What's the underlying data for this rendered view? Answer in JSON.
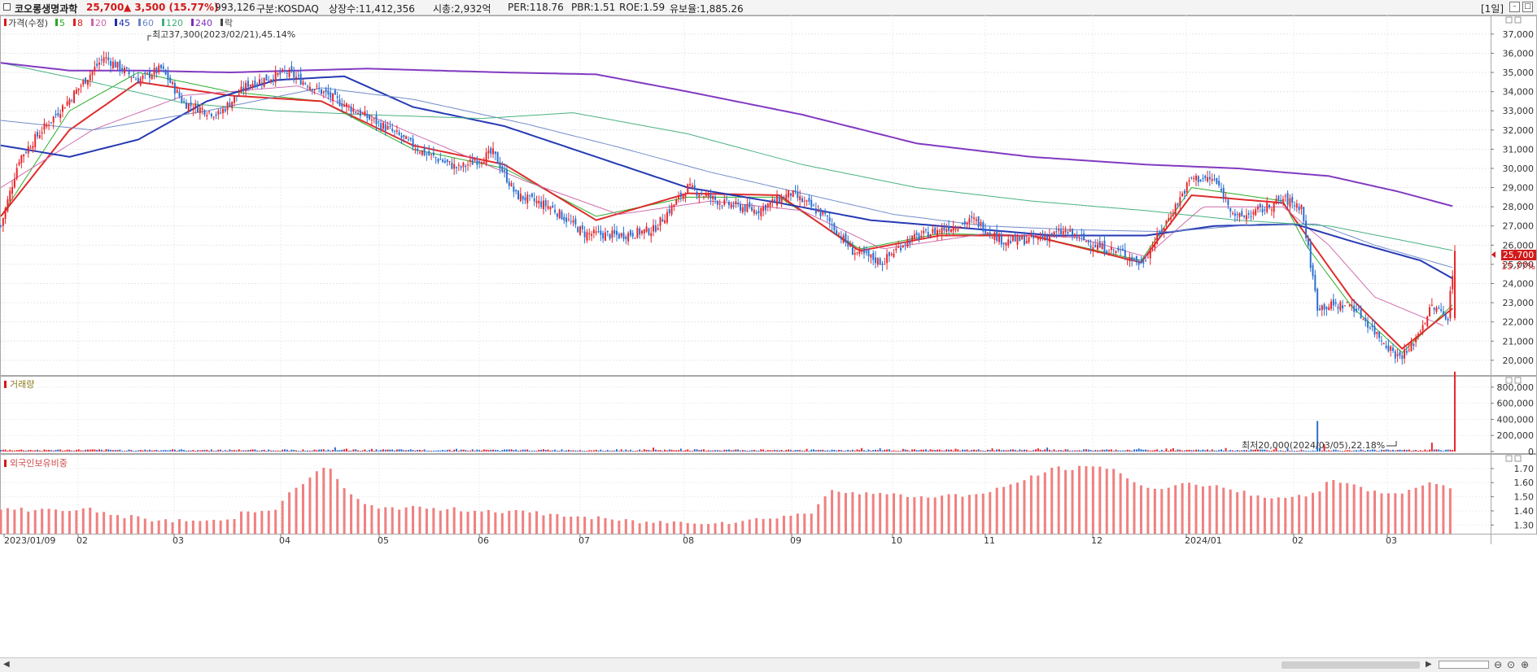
{
  "header": {
    "stock_name": "코오롱생명과학",
    "price": "25,700",
    "change": "▲ 3,500 (15.77%)",
    "volume": "993,126",
    "market": "구분:KOSDAQ",
    "shares": "상장수:11,412,356",
    "market_cap": "시총:2,932억",
    "per": "PER:118.76",
    "pbr": "PBR:1.51",
    "roe": "ROE:1.59",
    "float": "유보율:1,885.26",
    "period": "[1일]"
  },
  "price_panel": {
    "legend_prefix": "가격(수정)",
    "legend_items": [
      {
        "label": "5",
        "color": "#22aa22"
      },
      {
        "label": "8",
        "color": "#dd2222"
      },
      {
        "label": "20",
        "color": "#cc66aa"
      },
      {
        "label": "45",
        "color": "#1a2fb0"
      },
      {
        "label": "60",
        "color": "#6b86c8"
      },
      {
        "label": "120",
        "color": "#3fae7a"
      },
      {
        "label": "240",
        "color": "#7b2fbe"
      },
      {
        "label": "락",
        "color": "#444444"
      }
    ],
    "high_annotation": "최고37,300(2023/02/21),45.14%",
    "low_annotation": "최저20,000(2024/03/05),22.18%",
    "current_price_label": "25,700",
    "current_pct_label": "15.77%"
  },
  "volume_panel": {
    "title": "거래량"
  },
  "foreign_panel": {
    "title": "외국인보유비중"
  },
  "colors": {
    "up": "#e8262a",
    "down": "#2a6fd1",
    "bar_pink": "#f08080"
  },
  "chart_data": [
    {
      "type": "candlestick",
      "title": "가격(수정)",
      "x_labels": [
        "2023/01/09",
        "02",
        "03",
        "04",
        "05",
        "06",
        "07",
        "08",
        "09",
        "10",
        "11",
        "12",
        "2024/01",
        "02",
        "03"
      ],
      "y_ticks": [
        20000,
        21000,
        22000,
        23000,
        24000,
        25000,
        26000,
        27000,
        28000,
        29000,
        30000,
        31000,
        32000,
        33000,
        34000,
        35000,
        36000,
        37000
      ],
      "ylim": [
        19400,
        37800
      ],
      "approx_close_path": [
        [
          0,
          27000
        ],
        [
          8,
          30500
        ],
        [
          18,
          32000
        ],
        [
          30,
          33600
        ],
        [
          45,
          35800
        ],
        [
          60,
          34600
        ],
        [
          70,
          35200
        ],
        [
          80,
          33400
        ],
        [
          95,
          32800
        ],
        [
          108,
          34400
        ],
        [
          125,
          35000
        ],
        [
          140,
          34000
        ],
        [
          155,
          33000
        ],
        [
          170,
          32000
        ],
        [
          185,
          30800
        ],
        [
          200,
          30000
        ],
        [
          215,
          30800
        ],
        [
          225,
          28600
        ],
        [
          240,
          28000
        ],
        [
          255,
          26600
        ],
        [
          270,
          26500
        ],
        [
          285,
          26800
        ],
        [
          300,
          29000
        ],
        [
          315,
          28200
        ],
        [
          330,
          27800
        ],
        [
          345,
          28700
        ],
        [
          360,
          27500
        ],
        [
          372,
          25700
        ],
        [
          385,
          25100
        ],
        [
          395,
          26200
        ],
        [
          410,
          26800
        ],
        [
          425,
          27300
        ],
        [
          438,
          26200
        ],
        [
          450,
          26300
        ],
        [
          465,
          26700
        ],
        [
          480,
          25900
        ],
        [
          490,
          25600
        ],
        [
          498,
          25000
        ],
        [
          510,
          27400
        ],
        [
          520,
          29500
        ],
        [
          530,
          29400
        ],
        [
          540,
          27400
        ],
        [
          550,
          27800
        ],
        [
          560,
          28400
        ],
        [
          568,
          28000
        ],
        [
          575,
          22800
        ],
        [
          590,
          22900
        ],
        [
          600,
          21500
        ],
        [
          610,
          20200
        ],
        [
          615,
          20500
        ],
        [
          625,
          22800
        ],
        [
          632,
          22300
        ],
        [
          635,
          25700
        ]
      ],
      "last": {
        "date": "2024/03",
        "close": 25700,
        "change": 3500,
        "change_pct": 15.77
      },
      "period_high": {
        "date": "2023/02/21",
        "value": 37300,
        "pct": 45.14
      },
      "period_low": {
        "date": "2024/03/05",
        "value": 20000,
        "pct": 22.18
      },
      "moving_averages": [
        {
          "name": "5",
          "points": [
            [
              0,
              27500
            ],
            [
              30,
              33000
            ],
            [
              60,
              35000
            ],
            [
              100,
              34000
            ],
            [
              140,
              33500
            ],
            [
              180,
              31000
            ],
            [
              220,
              30000
            ],
            [
              260,
              27500
            ],
            [
              300,
              28500
            ],
            [
              340,
              28500
            ],
            [
              375,
              25800
            ],
            [
              410,
              26600
            ],
            [
              450,
              26500
            ],
            [
              498,
              25200
            ],
            [
              520,
              29000
            ],
            [
              560,
              28300
            ],
            [
              570,
              26000
            ],
            [
              590,
              22800
            ],
            [
              612,
              20400
            ],
            [
              635,
              23000
            ]
          ]
        },
        {
          "name": "8",
          "points": [
            [
              0,
              27500
            ],
            [
              30,
              32000
            ],
            [
              60,
              34500
            ],
            [
              100,
              33800
            ],
            [
              140,
              33500
            ],
            [
              180,
              31200
            ],
            [
              220,
              30200
            ],
            [
              260,
              27300
            ],
            [
              300,
              28700
            ],
            [
              340,
              28600
            ],
            [
              375,
              25700
            ],
            [
              410,
              26500
            ],
            [
              450,
              26500
            ],
            [
              498,
              25100
            ],
            [
              520,
              28600
            ],
            [
              560,
              28200
            ],
            [
              572,
              26200
            ],
            [
              590,
              23200
            ],
            [
              612,
              20600
            ],
            [
              635,
              22800
            ]
          ]
        },
        {
          "name": "20",
          "points": [
            [
              0,
              29000
            ],
            [
              40,
              32000
            ],
            [
              80,
              33800
            ],
            [
              130,
              34300
            ],
            [
              180,
              31800
            ],
            [
              230,
              29300
            ],
            [
              270,
              27600
            ],
            [
              310,
              28300
            ],
            [
              350,
              27800
            ],
            [
              385,
              25800
            ],
            [
              430,
              26600
            ],
            [
              470,
              26400
            ],
            [
              500,
              25400
            ],
            [
              525,
              28000
            ],
            [
              560,
              28000
            ],
            [
              580,
              26000
            ],
            [
              600,
              23300
            ],
            [
              630,
              21800
            ]
          ]
        },
        {
          "name": "45",
          "points": [
            [
              0,
              31200
            ],
            [
              30,
              30600
            ],
            [
              60,
              31500
            ],
            [
              90,
              33500
            ],
            [
              120,
              34600
            ],
            [
              150,
              34800
            ],
            [
              180,
              33200
            ],
            [
              220,
              32200
            ],
            [
              260,
              30600
            ],
            [
              300,
              29000
            ],
            [
              340,
              28200
            ],
            [
              380,
              27300
            ],
            [
              420,
              26900
            ],
            [
              460,
              26500
            ],
            [
              500,
              26500
            ],
            [
              530,
              27000
            ],
            [
              565,
              27100
            ],
            [
              590,
              26200
            ],
            [
              620,
              25200
            ],
            [
              635,
              24200
            ]
          ]
        },
        {
          "name": "60",
          "points": [
            [
              0,
              32500
            ],
            [
              40,
              32000
            ],
            [
              90,
              33000
            ],
            [
              140,
              34200
            ],
            [
              180,
              33600
            ],
            [
              230,
              32300
            ],
            [
              270,
              31100
            ],
            [
              310,
              29800
            ],
            [
              350,
              28700
            ],
            [
              390,
              27600
            ],
            [
              430,
              27000
            ],
            [
              470,
              26800
            ],
            [
              510,
              26700
            ],
            [
              550,
              27100
            ],
            [
              575,
              27100
            ],
            [
              600,
              26000
            ],
            [
              635,
              24800
            ]
          ]
        },
        {
          "name": "120",
          "points": [
            [
              0,
              35500
            ],
            [
              40,
              34500
            ],
            [
              80,
              33400
            ],
            [
              120,
              33000
            ],
            [
              160,
              32800
            ],
            [
              210,
              32600
            ],
            [
              250,
              32900
            ],
            [
              300,
              31800
            ],
            [
              350,
              30200
            ],
            [
              400,
              29000
            ],
            [
              450,
              28300
            ],
            [
              500,
              27800
            ],
            [
              540,
              27300
            ],
            [
              580,
              27000
            ],
            [
              610,
              26300
            ],
            [
              635,
              25700
            ]
          ]
        },
        {
          "name": "240",
          "points": [
            [
              0,
              35500
            ],
            [
              30,
              35100
            ],
            [
              60,
              35100
            ],
            [
              100,
              35000
            ],
            [
              160,
              35200
            ],
            [
              220,
              35000
            ],
            [
              260,
              34900
            ],
            [
              300,
              34000
            ],
            [
              350,
              32800
            ],
            [
              400,
              31300
            ],
            [
              450,
              30600
            ],
            [
              500,
              30200
            ],
            [
              540,
              30000
            ],
            [
              580,
              29600
            ],
            [
              610,
              28800
            ],
            [
              635,
              28000
            ]
          ]
        }
      ]
    },
    {
      "type": "bar",
      "title": "거래량",
      "y_ticks": [
        0,
        200000,
        400000,
        600000,
        800000
      ],
      "ylim": [
        0,
        900000
      ],
      "notable_bars": [
        {
          "x_index": 575,
          "value": 380000,
          "direction": "down"
        },
        {
          "x_index": 578,
          "value": 90000,
          "direction": "up"
        },
        {
          "x_index": 625,
          "value": 110000,
          "direction": "up"
        },
        {
          "x_index": 635,
          "value": 993126,
          "direction": "up"
        }
      ],
      "baseline_level": 15000
    },
    {
      "type": "bar",
      "title": "외국인보유비중",
      "y_ticks": [
        1.3,
        1.4,
        1.5,
        1.6,
        1.7
      ],
      "ylim": [
        1.25,
        1.78
      ],
      "approx_path": [
        [
          0,
          1.41
        ],
        [
          40,
          1.41
        ],
        [
          45,
          1.38
        ],
        [
          70,
          1.33
        ],
        [
          100,
          1.33
        ],
        [
          105,
          1.39
        ],
        [
          120,
          1.42
        ],
        [
          128,
          1.55
        ],
        [
          143,
          1.73
        ],
        [
          150,
          1.55
        ],
        [
          160,
          1.43
        ],
        [
          200,
          1.41
        ],
        [
          230,
          1.39
        ],
        [
          280,
          1.32
        ],
        [
          320,
          1.32
        ],
        [
          355,
          1.39
        ],
        [
          362,
          1.55
        ],
        [
          400,
          1.5
        ],
        [
          430,
          1.52
        ],
        [
          460,
          1.7
        ],
        [
          485,
          1.71
        ],
        [
          500,
          1.55
        ],
        [
          520,
          1.6
        ],
        [
          560,
          1.48
        ],
        [
          575,
          1.52
        ],
        [
          580,
          1.64
        ],
        [
          595,
          1.55
        ],
        [
          610,
          1.52
        ],
        [
          620,
          1.58
        ],
        [
          628,
          1.6
        ],
        [
          635,
          1.56
        ]
      ]
    }
  ]
}
